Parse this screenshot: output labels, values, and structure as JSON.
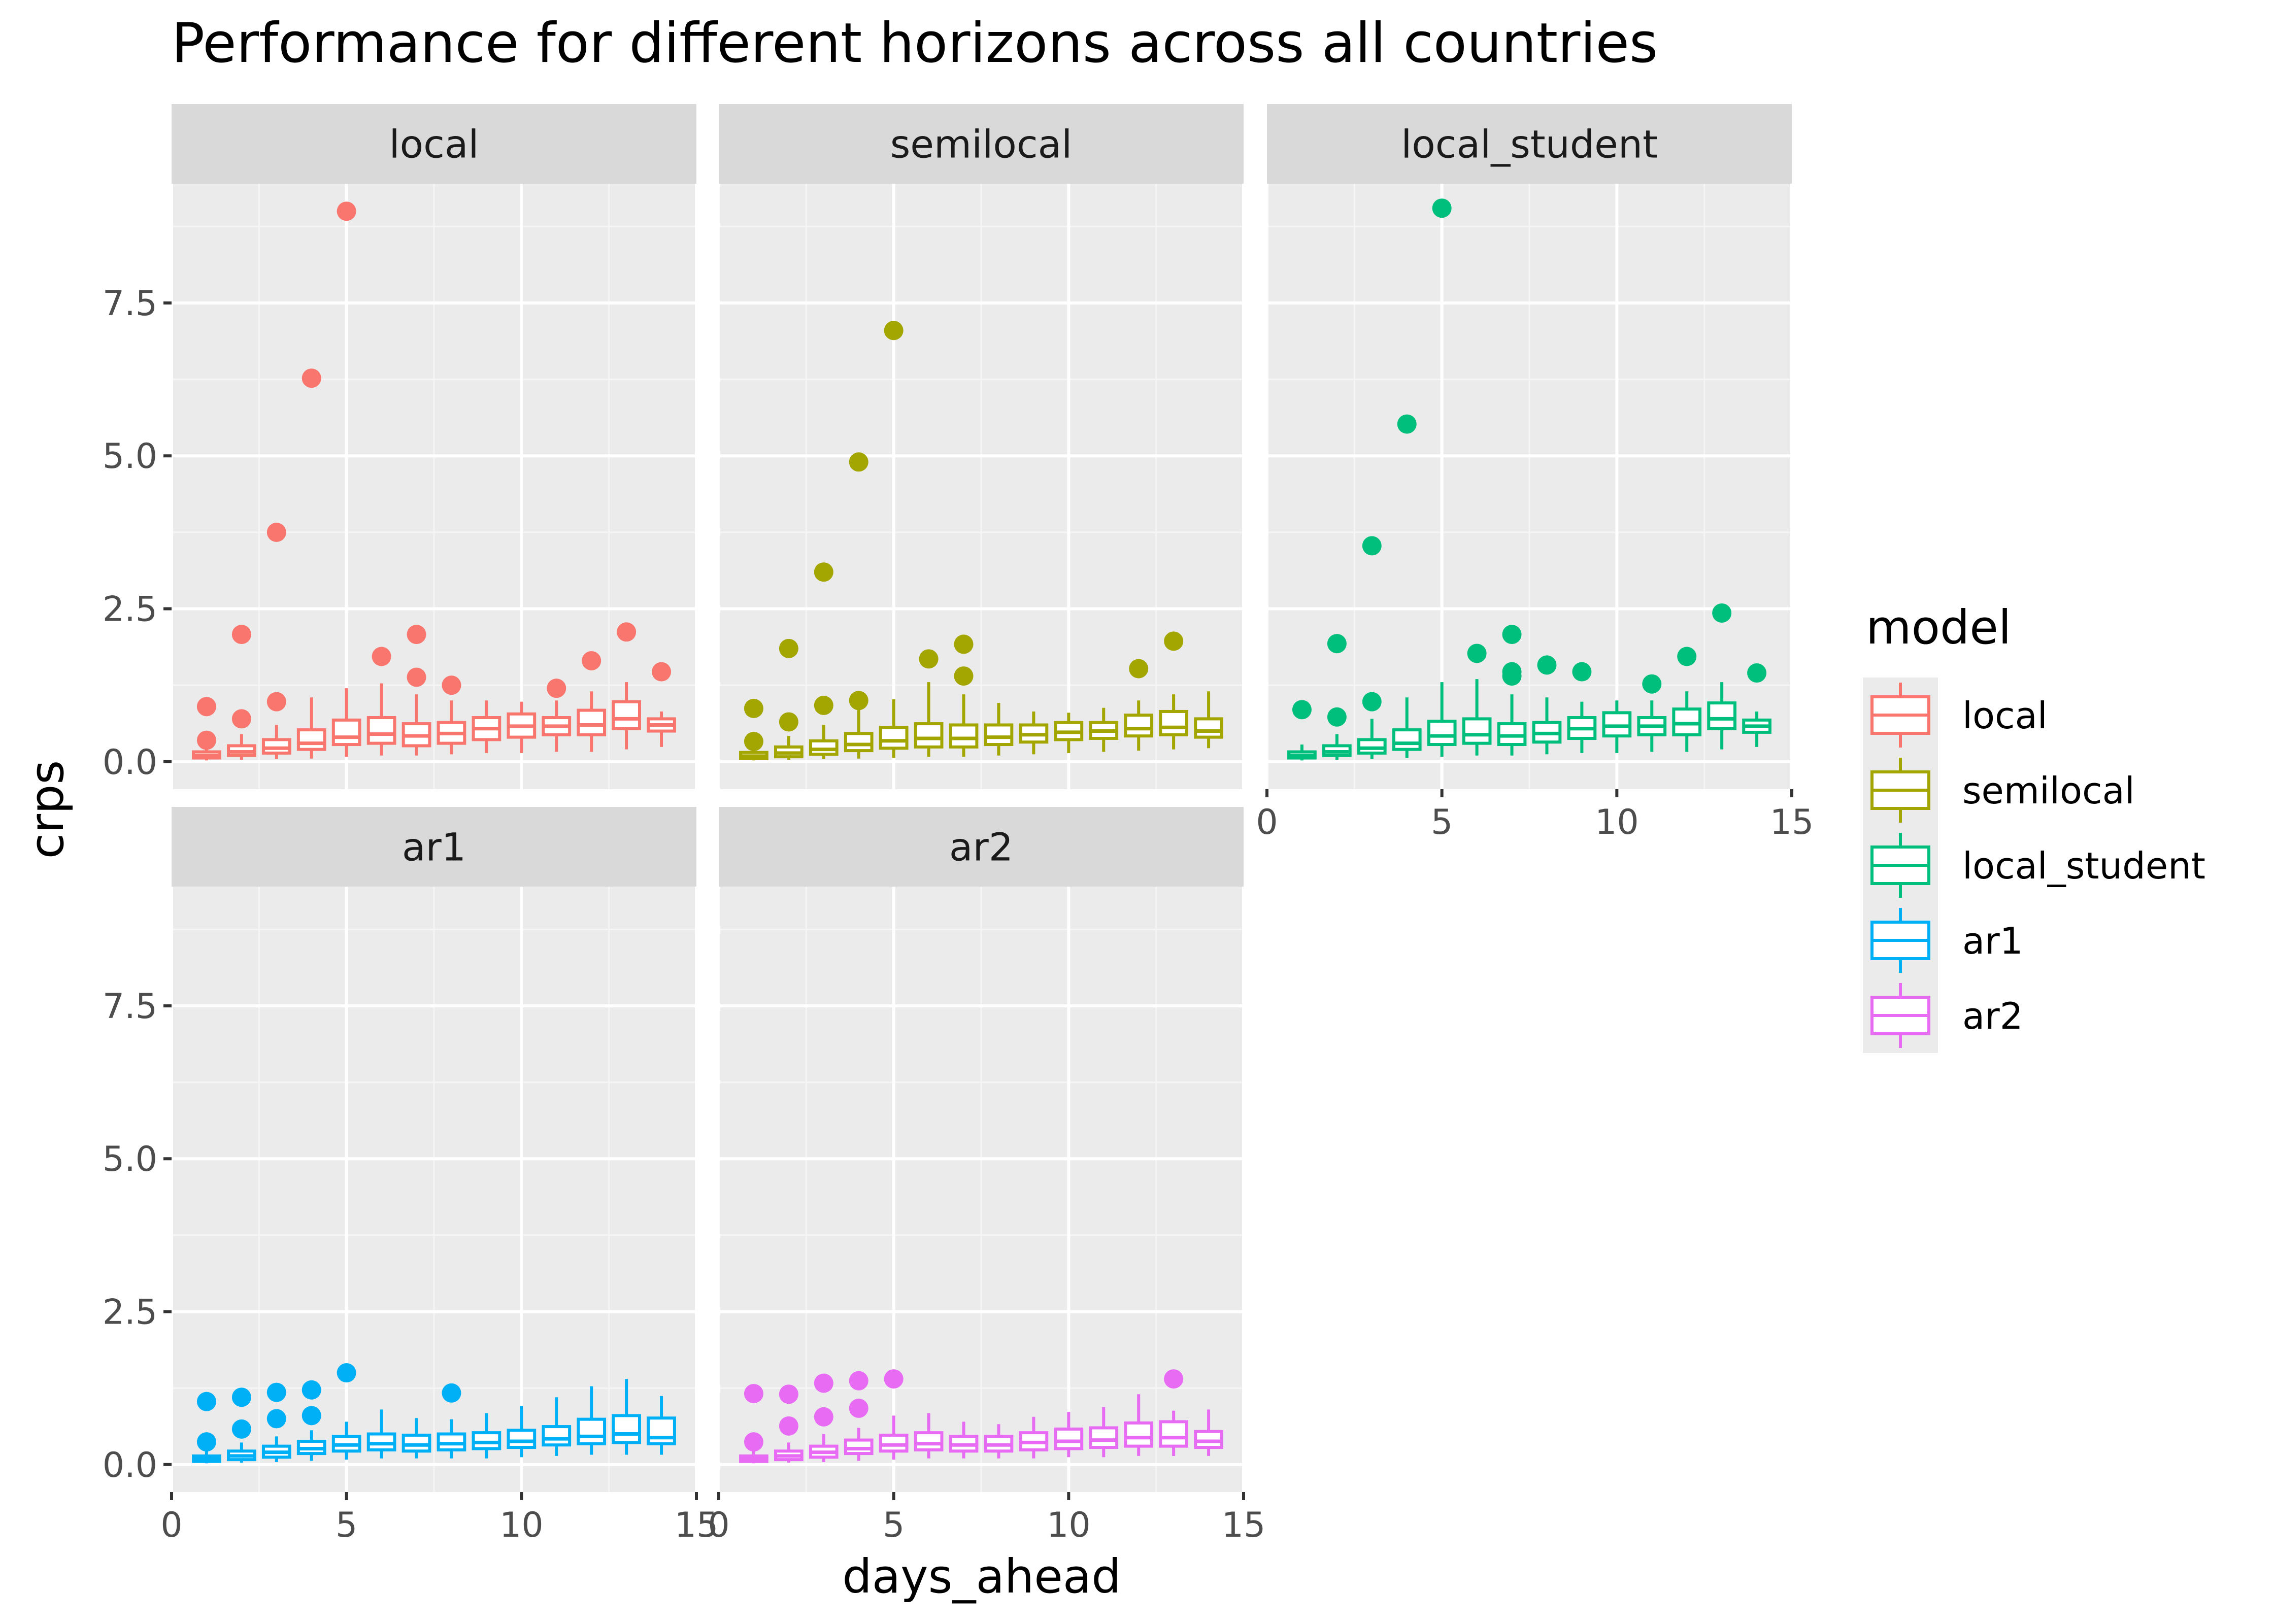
{
  "chart_data": {
    "type": "boxplot",
    "title": "Performance for different horizons across all countries",
    "xlabel": "days_ahead",
    "ylabel": "crps",
    "xlim": [
      0,
      15
    ],
    "ylim": [
      -0.45,
      9.45
    ],
    "x_ticks": [
      0,
      5,
      10,
      15
    ],
    "y_ticks": [
      0.0,
      2.5,
      5.0,
      7.5
    ],
    "x_tick_labels": [
      "0",
      "5",
      "10",
      "15"
    ],
    "y_tick_labels": [
      "0.0",
      "2.5",
      "5.0",
      "7.5"
    ],
    "grid": true,
    "facet_by": "model",
    "legend": {
      "title": "model",
      "position": "right",
      "entries": [
        "local",
        "semilocal",
        "local_student",
        "ar1",
        "ar2"
      ]
    },
    "panels": [
      {
        "name": "local",
        "color": "#F8766D",
        "boxes": [
          {
            "x": 1,
            "min": 0.02,
            "q1": 0.06,
            "median": 0.1,
            "q3": 0.16,
            "max": 0.28,
            "outliers": [
              0.9,
              0.35
            ]
          },
          {
            "x": 2,
            "min": 0.03,
            "q1": 0.1,
            "median": 0.16,
            "q3": 0.26,
            "max": 0.45,
            "outliers": [
              2.08,
              0.7
            ]
          },
          {
            "x": 3,
            "min": 0.04,
            "q1": 0.14,
            "median": 0.22,
            "q3": 0.36,
            "max": 0.6,
            "outliers": [
              3.75,
              0.98
            ]
          },
          {
            "x": 4,
            "min": 0.05,
            "q1": 0.2,
            "median": 0.3,
            "q3": 0.52,
            "max": 1.05,
            "outliers": [
              6.27
            ]
          },
          {
            "x": 5,
            "min": 0.08,
            "q1": 0.28,
            "median": 0.4,
            "q3": 0.68,
            "max": 1.2,
            "outliers": [
              9.0
            ]
          },
          {
            "x": 6,
            "min": 0.1,
            "q1": 0.3,
            "median": 0.45,
            "q3": 0.72,
            "max": 1.28,
            "outliers": [
              1.72
            ]
          },
          {
            "x": 7,
            "min": 0.1,
            "q1": 0.26,
            "median": 0.42,
            "q3": 0.62,
            "max": 1.1,
            "outliers": [
              2.08,
              1.38
            ]
          },
          {
            "x": 8,
            "min": 0.12,
            "q1": 0.3,
            "median": 0.46,
            "q3": 0.64,
            "max": 1.0,
            "outliers": [
              1.25
            ]
          },
          {
            "x": 9,
            "min": 0.14,
            "q1": 0.36,
            "median": 0.54,
            "q3": 0.72,
            "max": 1.0,
            "outliers": []
          },
          {
            "x": 10,
            "min": 0.14,
            "q1": 0.4,
            "median": 0.58,
            "q3": 0.78,
            "max": 0.98,
            "outliers": []
          },
          {
            "x": 11,
            "min": 0.16,
            "q1": 0.44,
            "median": 0.58,
            "q3": 0.72,
            "max": 1.0,
            "outliers": [
              1.2
            ]
          },
          {
            "x": 12,
            "min": 0.16,
            "q1": 0.44,
            "median": 0.6,
            "q3": 0.84,
            "max": 1.15,
            "outliers": [
              1.65
            ]
          },
          {
            "x": 13,
            "min": 0.2,
            "q1": 0.54,
            "median": 0.7,
            "q3": 0.98,
            "max": 1.3,
            "outliers": [
              2.12
            ]
          },
          {
            "x": 14,
            "min": 0.24,
            "q1": 0.5,
            "median": 0.6,
            "q3": 0.7,
            "max": 0.82,
            "outliers": [
              1.47
            ]
          }
        ]
      },
      {
        "name": "semilocal",
        "color": "#A3A500",
        "boxes": [
          {
            "x": 1,
            "min": 0.02,
            "q1": 0.05,
            "median": 0.09,
            "q3": 0.15,
            "max": 0.25,
            "outliers": [
              0.87,
              0.33
            ]
          },
          {
            "x": 2,
            "min": 0.03,
            "q1": 0.08,
            "median": 0.14,
            "q3": 0.24,
            "max": 0.42,
            "outliers": [
              1.85,
              0.65
            ]
          },
          {
            "x": 3,
            "min": 0.04,
            "q1": 0.12,
            "median": 0.2,
            "q3": 0.34,
            "max": 0.6,
            "outliers": [
              3.1,
              0.92
            ]
          },
          {
            "x": 4,
            "min": 0.05,
            "q1": 0.18,
            "median": 0.28,
            "q3": 0.46,
            "max": 0.85,
            "outliers": [
              4.9,
              1.0
            ]
          },
          {
            "x": 5,
            "min": 0.06,
            "q1": 0.22,
            "median": 0.34,
            "q3": 0.56,
            "max": 1.02,
            "outliers": [
              7.05
            ]
          },
          {
            "x": 6,
            "min": 0.08,
            "q1": 0.24,
            "median": 0.38,
            "q3": 0.62,
            "max": 1.3,
            "outliers": [
              1.68
            ]
          },
          {
            "x": 7,
            "min": 0.08,
            "q1": 0.24,
            "median": 0.38,
            "q3": 0.6,
            "max": 1.1,
            "outliers": [
              1.92,
              1.4
            ]
          },
          {
            "x": 8,
            "min": 0.1,
            "q1": 0.28,
            "median": 0.4,
            "q3": 0.6,
            "max": 0.96,
            "outliers": []
          },
          {
            "x": 9,
            "min": 0.12,
            "q1": 0.32,
            "median": 0.44,
            "q3": 0.6,
            "max": 0.82,
            "outliers": []
          },
          {
            "x": 10,
            "min": 0.14,
            "q1": 0.36,
            "median": 0.48,
            "q3": 0.64,
            "max": 0.8,
            "outliers": []
          },
          {
            "x": 11,
            "min": 0.16,
            "q1": 0.38,
            "median": 0.5,
            "q3": 0.64,
            "max": 0.88,
            "outliers": []
          },
          {
            "x": 12,
            "min": 0.18,
            "q1": 0.42,
            "median": 0.54,
            "q3": 0.76,
            "max": 1.0,
            "outliers": [
              1.52
            ]
          },
          {
            "x": 13,
            "min": 0.2,
            "q1": 0.44,
            "median": 0.56,
            "q3": 0.82,
            "max": 1.1,
            "outliers": [
              1.97
            ]
          },
          {
            "x": 14,
            "min": 0.22,
            "q1": 0.4,
            "median": 0.5,
            "q3": 0.7,
            "max": 1.15,
            "outliers": []
          }
        ]
      },
      {
        "name": "local_student",
        "color": "#00BF7D",
        "boxes": [
          {
            "x": 1,
            "min": 0.02,
            "q1": 0.06,
            "median": 0.1,
            "q3": 0.16,
            "max": 0.28,
            "outliers": [
              0.85
            ]
          },
          {
            "x": 2,
            "min": 0.03,
            "q1": 0.1,
            "median": 0.16,
            "q3": 0.26,
            "max": 0.45,
            "outliers": [
              1.93,
              0.73
            ]
          },
          {
            "x": 3,
            "min": 0.04,
            "q1": 0.14,
            "median": 0.22,
            "q3": 0.36,
            "max": 0.7,
            "outliers": [
              3.53,
              0.98
            ]
          },
          {
            "x": 4,
            "min": 0.06,
            "q1": 0.2,
            "median": 0.3,
            "q3": 0.52,
            "max": 1.05,
            "outliers": [
              5.52
            ]
          },
          {
            "x": 5,
            "min": 0.08,
            "q1": 0.28,
            "median": 0.42,
            "q3": 0.66,
            "max": 1.3,
            "outliers": [
              9.05
            ]
          },
          {
            "x": 6,
            "min": 0.1,
            "q1": 0.3,
            "median": 0.44,
            "q3": 0.7,
            "max": 1.35,
            "outliers": [
              1.77
            ]
          },
          {
            "x": 7,
            "min": 0.1,
            "q1": 0.28,
            "median": 0.42,
            "q3": 0.62,
            "max": 1.1,
            "outliers": [
              2.08,
              1.47,
              1.4
            ]
          },
          {
            "x": 8,
            "min": 0.12,
            "q1": 0.32,
            "median": 0.46,
            "q3": 0.64,
            "max": 1.05,
            "outliers": [
              1.58
            ]
          },
          {
            "x": 9,
            "min": 0.14,
            "q1": 0.38,
            "median": 0.54,
            "q3": 0.72,
            "max": 0.98,
            "outliers": [
              1.47
            ]
          },
          {
            "x": 10,
            "min": 0.14,
            "q1": 0.42,
            "median": 0.58,
            "q3": 0.8,
            "max": 1.0,
            "outliers": []
          },
          {
            "x": 11,
            "min": 0.16,
            "q1": 0.44,
            "median": 0.58,
            "q3": 0.72,
            "max": 1.0,
            "outliers": [
              1.27
            ]
          },
          {
            "x": 12,
            "min": 0.16,
            "q1": 0.44,
            "median": 0.62,
            "q3": 0.86,
            "max": 1.15,
            "outliers": [
              1.72
            ]
          },
          {
            "x": 13,
            "min": 0.2,
            "q1": 0.54,
            "median": 0.7,
            "q3": 0.96,
            "max": 1.3,
            "outliers": [
              2.43
            ]
          },
          {
            "x": 14,
            "min": 0.24,
            "q1": 0.48,
            "median": 0.58,
            "q3": 0.68,
            "max": 0.82,
            "outliers": [
              1.45
            ]
          }
        ]
      },
      {
        "name": "ar1",
        "color": "#00B0F6",
        "boxes": [
          {
            "x": 1,
            "min": 0.02,
            "q1": 0.05,
            "median": 0.09,
            "q3": 0.14,
            "max": 0.22,
            "outliers": [
              1.03,
              0.37
            ]
          },
          {
            "x": 2,
            "min": 0.03,
            "q1": 0.08,
            "median": 0.14,
            "q3": 0.22,
            "max": 0.36,
            "outliers": [
              1.1,
              0.58
            ]
          },
          {
            "x": 3,
            "min": 0.04,
            "q1": 0.12,
            "median": 0.2,
            "q3": 0.3,
            "max": 0.46,
            "outliers": [
              1.18,
              0.75
            ]
          },
          {
            "x": 4,
            "min": 0.06,
            "q1": 0.18,
            "median": 0.26,
            "q3": 0.38,
            "max": 0.56,
            "outliers": [
              1.22,
              0.8
            ]
          },
          {
            "x": 5,
            "min": 0.08,
            "q1": 0.22,
            "median": 0.32,
            "q3": 0.46,
            "max": 0.7,
            "outliers": [
              1.5
            ]
          },
          {
            "x": 6,
            "min": 0.1,
            "q1": 0.24,
            "median": 0.34,
            "q3": 0.5,
            "max": 0.9,
            "outliers": []
          },
          {
            "x": 7,
            "min": 0.1,
            "q1": 0.22,
            "median": 0.32,
            "q3": 0.48,
            "max": 0.76,
            "outliers": []
          },
          {
            "x": 8,
            "min": 0.1,
            "q1": 0.24,
            "median": 0.34,
            "q3": 0.5,
            "max": 0.74,
            "outliers": [
              1.17
            ]
          },
          {
            "x": 9,
            "min": 0.1,
            "q1": 0.26,
            "median": 0.36,
            "q3": 0.52,
            "max": 0.84,
            "outliers": []
          },
          {
            "x": 10,
            "min": 0.12,
            "q1": 0.28,
            "median": 0.38,
            "q3": 0.56,
            "max": 0.96,
            "outliers": []
          },
          {
            "x": 11,
            "min": 0.14,
            "q1": 0.32,
            "median": 0.42,
            "q3": 0.62,
            "max": 1.1,
            "outliers": []
          },
          {
            "x": 12,
            "min": 0.16,
            "q1": 0.34,
            "median": 0.46,
            "q3": 0.74,
            "max": 1.28,
            "outliers": []
          },
          {
            "x": 13,
            "min": 0.16,
            "q1": 0.36,
            "median": 0.5,
            "q3": 0.8,
            "max": 1.4,
            "outliers": []
          },
          {
            "x": 14,
            "min": 0.16,
            "q1": 0.34,
            "median": 0.44,
            "q3": 0.76,
            "max": 1.12,
            "outliers": []
          }
        ]
      },
      {
        "name": "ar2",
        "color": "#E76BF3",
        "boxes": [
          {
            "x": 1,
            "min": 0.02,
            "q1": 0.05,
            "median": 0.09,
            "q3": 0.14,
            "max": 0.22,
            "outliers": [
              1.16,
              0.37
            ]
          },
          {
            "x": 2,
            "min": 0.03,
            "q1": 0.08,
            "median": 0.14,
            "q3": 0.22,
            "max": 0.36,
            "outliers": [
              1.15,
              0.63
            ]
          },
          {
            "x": 3,
            "min": 0.04,
            "q1": 0.12,
            "median": 0.2,
            "q3": 0.3,
            "max": 0.5,
            "outliers": [
              1.33,
              0.78
            ]
          },
          {
            "x": 4,
            "min": 0.06,
            "q1": 0.18,
            "median": 0.26,
            "q3": 0.4,
            "max": 0.6,
            "outliers": [
              1.37,
              0.92
            ]
          },
          {
            "x": 5,
            "min": 0.08,
            "q1": 0.22,
            "median": 0.32,
            "q3": 0.48,
            "max": 0.8,
            "outliers": [
              1.4
            ]
          },
          {
            "x": 6,
            "min": 0.1,
            "q1": 0.24,
            "median": 0.34,
            "q3": 0.52,
            "max": 0.84,
            "outliers": []
          },
          {
            "x": 7,
            "min": 0.1,
            "q1": 0.22,
            "median": 0.32,
            "q3": 0.46,
            "max": 0.7,
            "outliers": []
          },
          {
            "x": 8,
            "min": 0.1,
            "q1": 0.22,
            "median": 0.32,
            "q3": 0.46,
            "max": 0.66,
            "outliers": []
          },
          {
            "x": 9,
            "min": 0.1,
            "q1": 0.24,
            "median": 0.36,
            "q3": 0.52,
            "max": 0.78,
            "outliers": []
          },
          {
            "x": 10,
            "min": 0.12,
            "q1": 0.26,
            "median": 0.38,
            "q3": 0.58,
            "max": 0.86,
            "outliers": []
          },
          {
            "x": 11,
            "min": 0.12,
            "q1": 0.28,
            "median": 0.4,
            "q3": 0.6,
            "max": 0.94,
            "outliers": []
          },
          {
            "x": 12,
            "min": 0.14,
            "q1": 0.3,
            "median": 0.44,
            "q3": 0.68,
            "max": 1.15,
            "outliers": []
          },
          {
            "x": 13,
            "min": 0.14,
            "q1": 0.3,
            "median": 0.44,
            "q3": 0.7,
            "max": 0.88,
            "outliers": [
              1.4
            ]
          },
          {
            "x": 14,
            "min": 0.14,
            "q1": 0.28,
            "median": 0.38,
            "q3": 0.54,
            "max": 0.9,
            "outliers": []
          }
        ]
      }
    ]
  }
}
